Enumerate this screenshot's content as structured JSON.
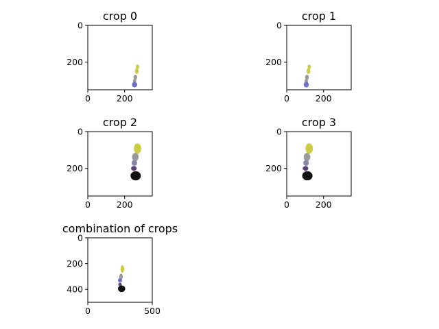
{
  "colors": {
    "yellow": "#cccc44",
    "gray": "#999999",
    "gray_dark": "#8a8a99",
    "slate": "#8888aa",
    "blue": "#6f6fcc",
    "purple": "#554477",
    "black": "#111111"
  },
  "chart_data": [
    {
      "type": "scatter",
      "title": "crop 0",
      "xlim": [
        0,
        350
      ],
      "ylim": [
        350,
        0
      ],
      "xticks": [
        0,
        200
      ],
      "yticks": [
        0,
        200
      ],
      "xtick_labels": [
        "0",
        "200"
      ],
      "ytick_labels": [
        "0",
        "200"
      ],
      "axis_ranges": {
        "x": [
          0,
          350
        ],
        "y": [
          350,
          0
        ]
      },
      "y_inverted": true,
      "grid": false,
      "blobs": [
        {
          "name": "yellow",
          "x": 270,
          "y": 225,
          "rx": 9,
          "ry": 12
        },
        {
          "name": "yellow",
          "x": 266,
          "y": 248,
          "rx": 10,
          "ry": 16
        },
        {
          "name": "gray",
          "x": 258,
          "y": 282,
          "rx": 10,
          "ry": 14
        },
        {
          "name": "gray",
          "x": 254,
          "y": 302,
          "rx": 9,
          "ry": 11
        },
        {
          "name": "blue",
          "x": 254,
          "y": 322,
          "rx": 14,
          "ry": 15
        }
      ]
    },
    {
      "type": "scatter",
      "title": "crop 1",
      "xlim": [
        0,
        350
      ],
      "ylim": [
        350,
        0
      ],
      "xticks": [
        0,
        200
      ],
      "yticks": [
        0,
        200
      ],
      "xtick_labels": [
        "0",
        "200"
      ],
      "ytick_labels": [
        "0",
        "200"
      ],
      "axis_ranges": {
        "x": [
          0,
          350
        ],
        "y": [
          350,
          0
        ]
      },
      "y_inverted": true,
      "grid": false,
      "blobs": [
        {
          "name": "yellow",
          "x": 122,
          "y": 225,
          "rx": 9,
          "ry": 12
        },
        {
          "name": "yellow",
          "x": 118,
          "y": 248,
          "rx": 10,
          "ry": 16
        },
        {
          "name": "gray",
          "x": 110,
          "y": 282,
          "rx": 10,
          "ry": 14
        },
        {
          "name": "gray",
          "x": 106,
          "y": 302,
          "rx": 9,
          "ry": 11
        },
        {
          "name": "blue",
          "x": 106,
          "y": 322,
          "rx": 14,
          "ry": 15
        }
      ]
    },
    {
      "type": "scatter",
      "title": "crop 2",
      "xlim": [
        0,
        350
      ],
      "ylim": [
        350,
        0
      ],
      "xticks": [
        0,
        200
      ],
      "yticks": [
        0,
        200
      ],
      "xtick_labels": [
        "0",
        "200"
      ],
      "ytick_labels": [
        "0",
        "200"
      ],
      "axis_ranges": {
        "x": [
          0,
          350
        ],
        "y": [
          350,
          0
        ]
      },
      "y_inverted": true,
      "grid": false,
      "blobs": [
        {
          "name": "yellow",
          "x": 270,
          "y": 92,
          "rx": 20,
          "ry": 28
        },
        {
          "name": "gray",
          "x": 258,
          "y": 138,
          "rx": 18,
          "ry": 22
        },
        {
          "name": "slate",
          "x": 253,
          "y": 170,
          "rx": 15,
          "ry": 16
        },
        {
          "name": "purple",
          "x": 250,
          "y": 200,
          "rx": 15,
          "ry": 13
        },
        {
          "name": "black",
          "x": 260,
          "y": 240,
          "rx": 28,
          "ry": 25
        }
      ]
    },
    {
      "type": "scatter",
      "title": "crop 3",
      "xlim": [
        0,
        350
      ],
      "ylim": [
        350,
        0
      ],
      "xticks": [
        0,
        200
      ],
      "yticks": [
        0,
        200
      ],
      "xtick_labels": [
        "0",
        "200"
      ],
      "ytick_labels": [
        "0",
        "200"
      ],
      "axis_ranges": {
        "x": [
          0,
          350
        ],
        "y": [
          350,
          0
        ]
      },
      "y_inverted": true,
      "grid": false,
      "blobs": [
        {
          "name": "yellow",
          "x": 122,
          "y": 92,
          "rx": 20,
          "ry": 28
        },
        {
          "name": "gray",
          "x": 110,
          "y": 138,
          "rx": 18,
          "ry": 22
        },
        {
          "name": "slate",
          "x": 105,
          "y": 170,
          "rx": 15,
          "ry": 16
        },
        {
          "name": "purple",
          "x": 102,
          "y": 200,
          "rx": 15,
          "ry": 13
        },
        {
          "name": "black",
          "x": 112,
          "y": 240,
          "rx": 28,
          "ry": 25
        }
      ]
    },
    {
      "type": "scatter",
      "title": "combination of crops",
      "xlim": [
        0,
        500
      ],
      "ylim": [
        500,
        0
      ],
      "xticks": [
        0,
        500
      ],
      "yticks": [
        0,
        200,
        400
      ],
      "xtick_labels": [
        "0",
        "500"
      ],
      "ytick_labels": [
        "0",
        "200",
        "400"
      ],
      "axis_ranges": {
        "x": [
          0,
          500
        ],
        "y": [
          500,
          0
        ]
      },
      "y_inverted": true,
      "grid": false,
      "blobs": [
        {
          "name": "yellow",
          "x": 268,
          "y": 242,
          "rx": 14,
          "ry": 30
        },
        {
          "name": "gray",
          "x": 258,
          "y": 300,
          "rx": 14,
          "ry": 22
        },
        {
          "name": "blue",
          "x": 250,
          "y": 330,
          "rx": 16,
          "ry": 18
        },
        {
          "name": "purple",
          "x": 250,
          "y": 362,
          "rx": 14,
          "ry": 12
        },
        {
          "name": "black",
          "x": 262,
          "y": 395,
          "rx": 28,
          "ry": 26
        }
      ]
    }
  ]
}
